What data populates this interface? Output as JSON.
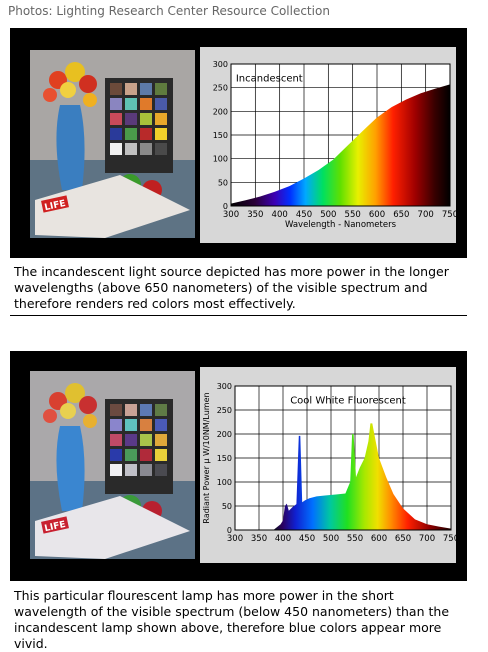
{
  "credit": "Photos: Lighting Research Center Resource Collection",
  "captions": {
    "incandescent": "The incandescent light source depicted has more power in the longer wavelengths (above 650 nanometers) of the visible spectrum and therefore renders red colors most effectively.",
    "fluorescent": "This particular flourescent lamp has more power in the short wavelength of the visible spectrum (below 450 nanometers) than the incandescent lamp shown above, therefore blue colors appear more vivid."
  },
  "photo": {
    "magazine_text": "LIFE"
  },
  "chart_data": [
    {
      "type": "area",
      "title": "Incandescent",
      "xlabel": "Wavelength - Nanometers",
      "ylabel": "",
      "xlim": [
        300,
        750
      ],
      "ylim": [
        0,
        300
      ],
      "xticks": [
        300,
        350,
        400,
        450,
        500,
        550,
        600,
        650,
        700,
        750
      ],
      "yticks": [
        0,
        50,
        100,
        150,
        200,
        250,
        300
      ],
      "grid": true,
      "x": [
        300,
        330,
        360,
        390,
        420,
        450,
        480,
        510,
        540,
        570,
        600,
        630,
        660,
        690,
        720,
        750
      ],
      "y": [
        5,
        12,
        20,
        30,
        42,
        58,
        76,
        98,
        128,
        158,
        187,
        209,
        225,
        238,
        248,
        257
      ]
    },
    {
      "type": "area",
      "title": "Cool White Fluorescent",
      "xlabel": "",
      "ylabel": "Radiant Power  μ W/10NM/Lumen",
      "xlim": [
        300,
        750
      ],
      "ylim": [
        0,
        300
      ],
      "xticks": [
        300,
        350,
        400,
        450,
        500,
        550,
        600,
        650,
        700,
        750
      ],
      "yticks": [
        0,
        50,
        100,
        150,
        200,
        250,
        300
      ],
      "grid": true,
      "x": [
        380,
        395,
        400,
        404,
        408,
        412,
        420,
        428,
        433,
        436,
        440,
        446,
        455,
        470,
        490,
        510,
        530,
        540,
        544,
        547,
        552,
        560,
        570,
        578,
        582,
        586,
        592,
        600,
        615,
        630,
        650,
        675,
        700,
        725,
        750
      ],
      "y": [
        0,
        12,
        20,
        50,
        55,
        40,
        48,
        54,
        196,
        196,
        58,
        62,
        66,
        70,
        72,
        74,
        76,
        100,
        200,
        200,
        110,
        130,
        150,
        185,
        222,
        222,
        190,
        150,
        110,
        75,
        45,
        22,
        12,
        7,
        3
      ]
    }
  ]
}
